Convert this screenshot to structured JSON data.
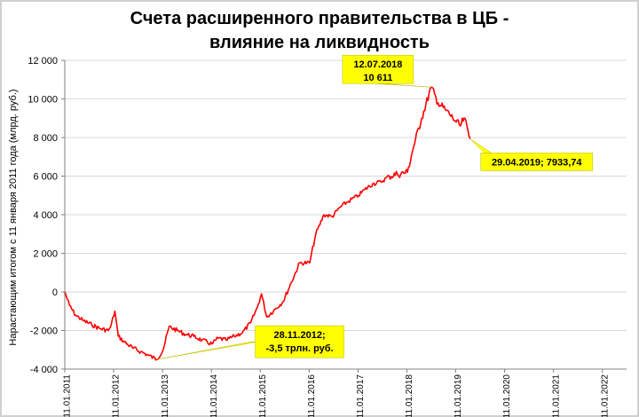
{
  "title_lines": [
    "Счета расширенного правительства в ЦБ -",
    "влияние на ликвидность"
  ],
  "colors": {
    "series": "#ff0000",
    "callout": "#ffff00",
    "grid": "#d9d9d9"
  },
  "chart_data": {
    "type": "line",
    "title": "Счета расширенного правительства в ЦБ - влияние на ликвидность",
    "ylabel": "Нарастающим итогом с 11 января 2011 года (млрд. руб.)",
    "xlabel": "",
    "ylim": [
      -4000,
      12000
    ],
    "xlim": [
      "2011-01-11",
      "2022-07-11"
    ],
    "y_ticks": [
      -4000,
      -2000,
      0,
      2000,
      4000,
      6000,
      8000,
      10000,
      12000
    ],
    "y_tick_labels": [
      "-4 000",
      "-2 000",
      "0",
      "2 000",
      "4 000",
      "6 000",
      "8 000",
      "10 000",
      "12 000"
    ],
    "x_tick_labels": [
      "11.01.2011",
      "11.01.2012",
      "11.01.2013",
      "11.01.2014",
      "11.01.2015",
      "11.01.2016",
      "11.01.2017",
      "11.01.2018",
      "11.01.2019",
      "11.01.2020",
      "11.01.2021",
      "11.01.2022"
    ],
    "grid": "horizontal",
    "series": [
      {
        "x": [
          "2011-01-11",
          "2011-02-15",
          "2011-04-01",
          "2011-06-01",
          "2011-08-01",
          "2011-10-01",
          "2011-12-01",
          "2011-12-20",
          "2012-01-20",
          "2012-02-15",
          "2012-04-01",
          "2012-06-01",
          "2012-08-01",
          "2012-10-01",
          "2012-11-28",
          "2013-01-15",
          "2013-03-01",
          "2013-05-01",
          "2013-07-01",
          "2013-09-01",
          "2013-11-01",
          "2014-01-15",
          "2014-03-01",
          "2014-05-01",
          "2014-07-01",
          "2014-09-01",
          "2014-11-01",
          "2014-12-20",
          "2015-01-20",
          "2015-03-01",
          "2015-05-01",
          "2015-07-01",
          "2015-09-01",
          "2015-11-01",
          "2016-01-15",
          "2016-03-01",
          "2016-05-01",
          "2016-07-01",
          "2016-09-01",
          "2016-11-01",
          "2017-01-15",
          "2017-03-01",
          "2017-05-01",
          "2017-07-01",
          "2017-09-01",
          "2017-11-01",
          "2018-01-15",
          "2018-03-01",
          "2018-05-01",
          "2018-07-12",
          "2018-09-01",
          "2018-11-01",
          "2019-01-15",
          "2019-02-15",
          "2019-03-15",
          "2019-04-29"
        ],
        "values": [
          0,
          -700,
          -1200,
          -1500,
          -1700,
          -1900,
          -2000,
          -1800,
          -1000,
          -2300,
          -2600,
          -2900,
          -3100,
          -3300,
          -3500,
          -3000,
          -1800,
          -2000,
          -2200,
          -2300,
          -2500,
          -2700,
          -2400,
          -2500,
          -2300,
          -2100,
          -1600,
          -800,
          -100,
          -1300,
          -900,
          -500,
          500,
          1500,
          1500,
          3000,
          4000,
          3900,
          4400,
          4700,
          5000,
          5300,
          5600,
          5700,
          6000,
          6100,
          6200,
          7500,
          9000,
          10611,
          9800,
          9400,
          8800,
          8600,
          9000,
          7933.74
        ]
      }
    ],
    "annotations": [
      {
        "lines": [
          "12.07.2018",
          "10 611"
        ],
        "x": "2018-07-12",
        "y": 10611
      },
      {
        "lines": [
          "29.04.2019; 7933,74"
        ],
        "x": "2019-04-29",
        "y": 7933.74
      },
      {
        "lines": [
          "28.11.2012;",
          "-3,5 трлн. руб."
        ],
        "x": "2012-11-28",
        "y": -3500
      }
    ]
  }
}
